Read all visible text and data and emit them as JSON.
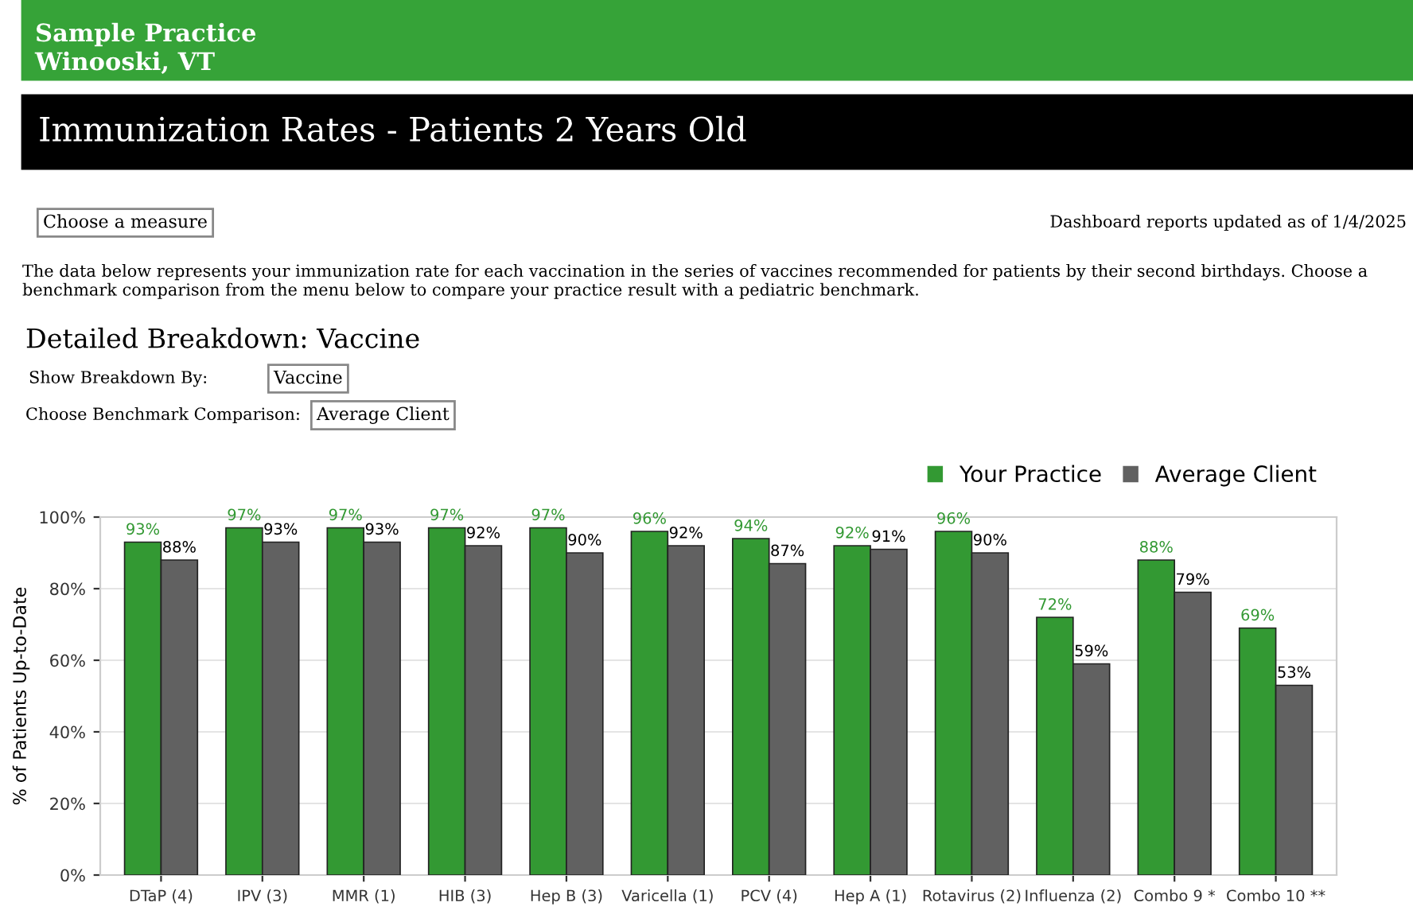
{
  "chart_data": {
    "type": "bar",
    "title": "Immunization Rates - Patients 2 Years Old",
    "subtitle": "Detailed Breakdown: Vaccine",
    "annotations": [
      "Sample Practice",
      "Winooski, VT",
      "Choose a measure",
      "Dashboard reports updated as of 1/4/2025",
      "The data below represents your immunization rate for each vaccination in the series of vaccines recommended for patients by their second birthdays. Choose a benchmark comparison from the menu below to compare your practice result with a pediatric benchmark.",
      "Show Breakdown By:",
      "Vaccine",
      "Choose Benchmark Comparison:",
      "Average Client"
    ],
    "ylabel": "% of Patients Up-to-Date",
    "categories": [
      "DTaP (4)",
      "IPV (3)",
      "MMR (1)",
      "HIB (3)",
      "Hep B (3)",
      "Varicella (1)",
      "PCV (4)",
      "Hep A (1)",
      "Rotavirus (2)",
      "Influenza (2)",
      "Combo 9 *",
      "Combo 10 **"
    ],
    "series": [
      {
        "name": "Your Practice",
        "color": "#339933",
        "values": [
          93,
          97,
          97,
          97,
          97,
          96,
          94,
          92,
          96,
          72,
          88,
          69
        ],
        "value_labels": [
          "93%",
          "97%",
          "97%",
          "97%",
          "97%",
          "96%",
          "94%",
          "92%",
          "96%",
          "72%",
          "88%",
          "69%"
        ]
      },
      {
        "name": "Average Client",
        "color": "#616161",
        "values": [
          88,
          93,
          93,
          92,
          90,
          92,
          87,
          91,
          90,
          59,
          79,
          53
        ],
        "value_labels": [
          "88%",
          "93%",
          "93%",
          "92%",
          "90%",
          "92%",
          "87%",
          "91%",
          "90%",
          "59%",
          "79%",
          "53%"
        ]
      }
    ],
    "ylim": [
      0,
      100
    ],
    "yticks": [
      {
        "value": 0,
        "label": "0%"
      },
      {
        "value": 20,
        "label": "20%"
      },
      {
        "value": 40,
        "label": "40%"
      },
      {
        "value": 60,
        "label": "60%"
      },
      {
        "value": 80,
        "label": "80%"
      },
      {
        "value": 100,
        "label": "100%"
      }
    ],
    "grid": "y",
    "legend": "top right"
  }
}
